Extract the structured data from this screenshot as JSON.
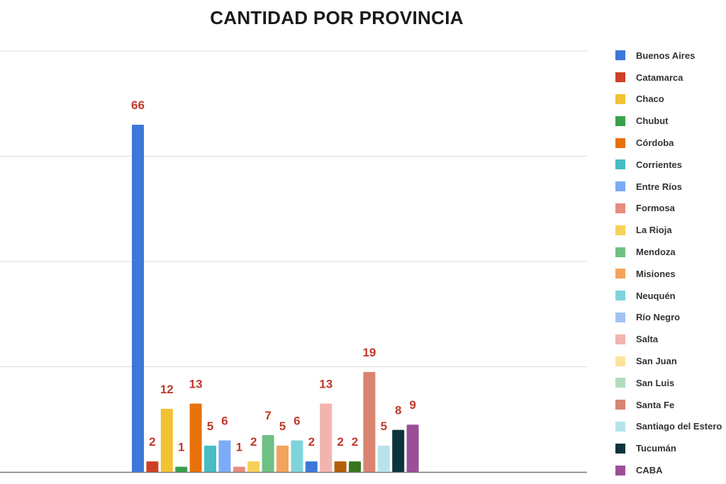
{
  "chart_data": {
    "type": "bar",
    "title": "CANTIDAD POR PROVINCIA",
    "xlabel": "",
    "ylabel": "",
    "ylim": [
      0,
      80
    ],
    "grid": true,
    "legend_position": "right",
    "label_color": "#c0392b",
    "categories": [
      "Buenos Aires",
      "Catamarca",
      "Chaco",
      "Chubut",
      "Córdoba",
      "Corrientes",
      "Entre Ríos",
      "Formosa",
      "La Rioja",
      "Mendoza",
      "Misiones",
      "Neuquén",
      "Río Negro",
      "Salta",
      "San Juan",
      "San Luis",
      "Santa Fe",
      "Santiago del Estero",
      "Tucumán",
      "CABA"
    ],
    "values": [
      66,
      2,
      12,
      1,
      13,
      5,
      6,
      1,
      2,
      7,
      5,
      6,
      2,
      13,
      2,
      2,
      19,
      5,
      8,
      9
    ],
    "colors": [
      "#3c78d8",
      "#cc4125",
      "#f1c232",
      "#38a04c",
      "#e8710a",
      "#46bdc6",
      "#7baaf7",
      "#e88b80",
      "#f6d15b",
      "#6fc183",
      "#f4a35b",
      "#7fd4db",
      "#a4c2f4",
      "#f2b4ae",
      "#fbe39c",
      "#b3dcbf",
      "#d98471",
      "#b7e4ea",
      "#0c343d",
      "#9b4f96"
    ],
    "bar_colors": [
      "#3c78d8",
      "#cc4125",
      "#f1c232",
      "#38a04c",
      "#e8710a",
      "#46bdc6",
      "#7baaf7",
      "#e88b80",
      "#f6d15b",
      "#6fc183",
      "#f4a35b",
      "#7fd4db",
      "#3c78d8",
      "#f2b4ae",
      "#b45f06",
      "#38761d",
      "#d98471",
      "#b7e4ea",
      "#0c343d",
      "#9b4f96"
    ],
    "legend": [
      "Buenos Aires",
      "Catamarca",
      "Chaco",
      "Chubut",
      "Córdoba",
      "Corrientes",
      "Entre Ríos",
      "Formosa",
      "La Rioja",
      "Mendoza",
      "Misiones",
      "Neuquén",
      "Río Negro",
      "Salta",
      "San Juan",
      "San Luis",
      "Santa Fe",
      "Santiago del Estero",
      "Tucumán",
      "CABA"
    ]
  }
}
